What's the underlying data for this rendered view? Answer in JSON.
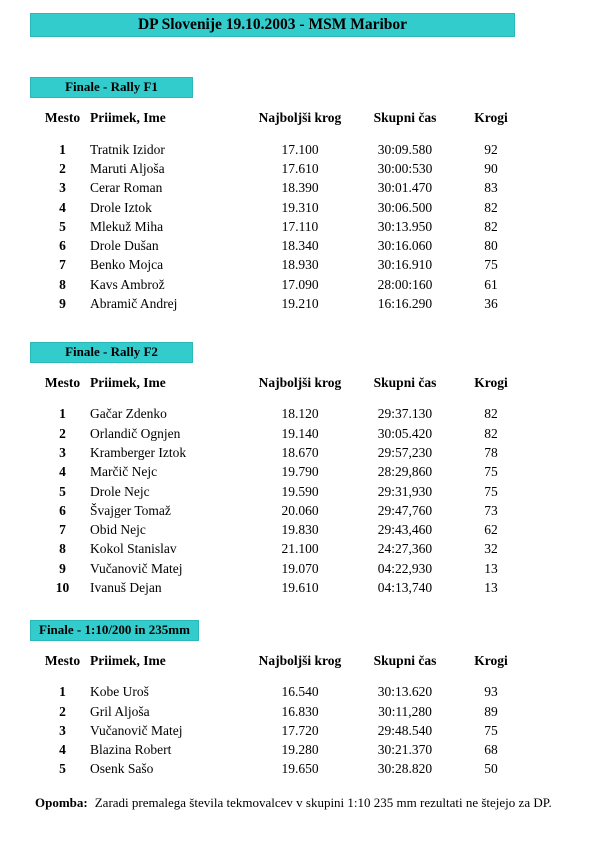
{
  "title": "DP Slovenije 19.10.2003 - MSM Maribor",
  "columns": [
    "Mesto",
    "Priimek, Ime",
    "Najboljši krog",
    "Skupni čas",
    "Krogi"
  ],
  "sections": [
    {
      "heading": "Finale - Rally F1",
      "rows": [
        [
          "1",
          "Tratnik Izidor",
          "17.100",
          "30:09.580",
          "92"
        ],
        [
          "2",
          "Maruti Aljoša",
          "17.610",
          "30:00:530",
          "90"
        ],
        [
          "3",
          "Cerar Roman",
          "18.390",
          "30:01.470",
          "83"
        ],
        [
          "4",
          "Drole Iztok",
          "19.310",
          "30:06.500",
          "82"
        ],
        [
          "5",
          "Mlekuž Miha",
          "17.110",
          "30:13.950",
          "82"
        ],
        [
          "6",
          "Drole Dušan",
          "18.340",
          "30:16.060",
          "80"
        ],
        [
          "7",
          "Benko Mojca",
          "18.930",
          "30:16.910",
          "75"
        ],
        [
          "8",
          "Kavs Ambrož",
          "17.090",
          "28:00:160",
          "61"
        ],
        [
          "9",
          "Abramič Andrej",
          "19.210",
          "16:16.290",
          "36"
        ]
      ]
    },
    {
      "heading": "Finale - Rally F2",
      "rows": [
        [
          "1",
          "Gačar Zdenko",
          "18.120",
          "29:37.130",
          "82"
        ],
        [
          "2",
          "Orlandič Ognjen",
          "19.140",
          "30:05.420",
          "82"
        ],
        [
          "3",
          "Kramberger Iztok",
          "18.670",
          "29:57,230",
          "78"
        ],
        [
          "4",
          "Marčič Nejc",
          "19.790",
          "28:29,860",
          "75"
        ],
        [
          "5",
          "Drole Nejc",
          "19.590",
          "29:31,930",
          "75"
        ],
        [
          "6",
          "Švajger Tomaž",
          "20.060",
          "29:47,760",
          "73"
        ],
        [
          "7",
          "Obid Nejc",
          "19.830",
          "29:43,460",
          "62"
        ],
        [
          "8",
          "Kokol Stanislav",
          "21.100",
          "24:27,360",
          "32"
        ],
        [
          "9",
          "Vučanovič Matej",
          "19.070",
          "04:22,930",
          "13"
        ],
        [
          "10",
          "Ivanuš Dejan",
          "19.610",
          "04:13,740",
          "13"
        ]
      ]
    },
    {
      "heading": "Finale - 1:10/200 in 235mm",
      "rows": [
        [
          "1",
          "Kobe Uroš",
          "16.540",
          "30:13.620",
          "93"
        ],
        [
          "2",
          "Gril Aljoša",
          "16.830",
          "30:11,280",
          "89"
        ],
        [
          "3",
          "Vučanovič Matej",
          "17.720",
          "29:48.540",
          "75"
        ],
        [
          "4",
          "Blazina Robert",
          "19.280",
          "30:21.370",
          "68"
        ],
        [
          "5",
          "Osenk Sašo",
          "19.650",
          "30:28.820",
          "50"
        ]
      ]
    }
  ],
  "note": {
    "label": "Opomba:",
    "text": "Zaradi premalega števila tekmovalcev v skupini 1:10 235 mm rezultati ne štejejo za DP."
  },
  "colors": {
    "highlight": "#33cccc",
    "highlight_border": "#2ab8b8",
    "text": "#000000"
  }
}
